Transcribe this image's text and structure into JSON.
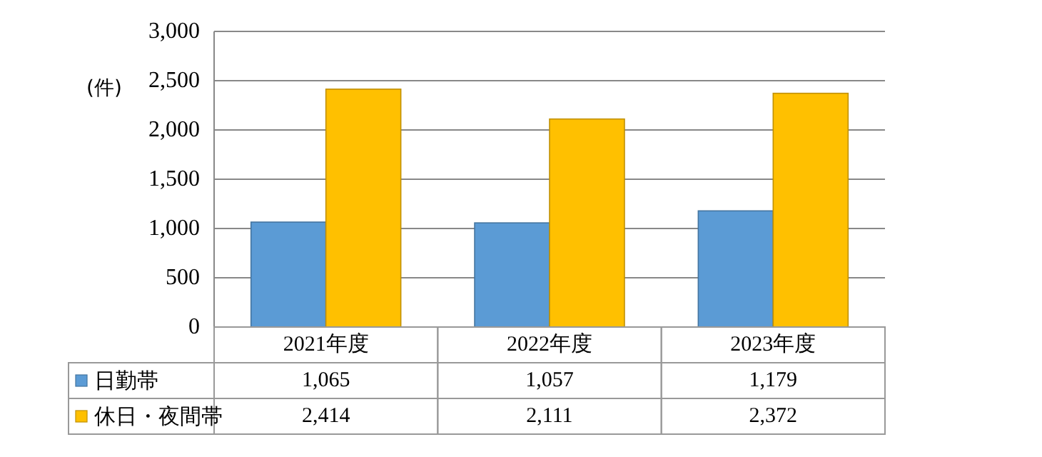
{
  "chart_data": {
    "type": "bar",
    "ylabel": "(件)",
    "categories": [
      "2021年度",
      "2022年度",
      "2023年度"
    ],
    "series": [
      {
        "name": "日勤帯",
        "color": "#5b9bd5",
        "values": [
          1065,
          1057,
          1179
        ],
        "value_labels": [
          "1,065",
          "1,057",
          "1,179"
        ]
      },
      {
        "name": "休日・夜間帯",
        "color": "#ffc000",
        "values": [
          2414,
          2111,
          2372
        ],
        "value_labels": [
          "2,414",
          "2,111",
          "2,372"
        ]
      }
    ],
    "ylim": [
      0,
      3000
    ],
    "yticks": [
      {
        "value": 0,
        "label": "0"
      },
      {
        "value": 500,
        "label": "500"
      },
      {
        "value": 1000,
        "label": "1,000"
      },
      {
        "value": 1500,
        "label": "1,500"
      },
      {
        "value": 2000,
        "label": "2,000"
      },
      {
        "value": 2500,
        "label": "2,500"
      },
      {
        "value": 3000,
        "label": "3,000"
      }
    ],
    "grid": "y",
    "legend": "bottom"
  }
}
